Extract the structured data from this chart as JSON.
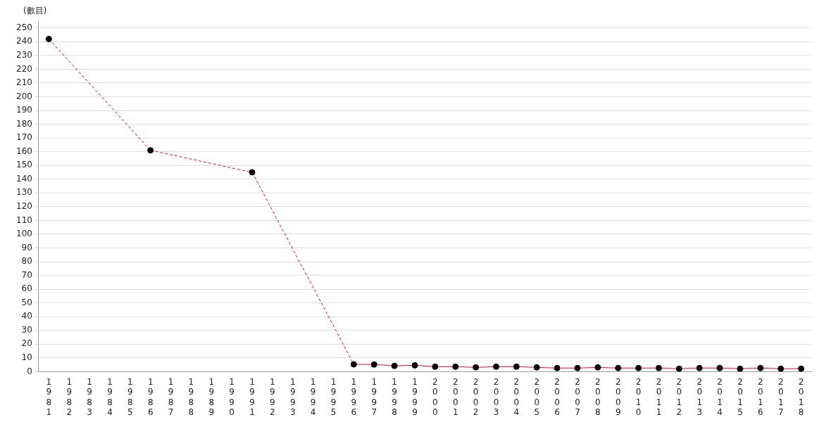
{
  "chart_data": {
    "type": "line",
    "ylabel": "(數目)",
    "categories": [
      "1981",
      "1982",
      "1983",
      "1984",
      "1985",
      "1986",
      "1987",
      "1988",
      "1989",
      "1990",
      "1991",
      "1992",
      "1993",
      "1994",
      "1995",
      "1996",
      "1997",
      "1998",
      "1999",
      "2000",
      "2001",
      "2002",
      "2003",
      "2004",
      "2005",
      "2006",
      "2007",
      "2008",
      "2009",
      "2010",
      "2011",
      "2012",
      "2013",
      "2014",
      "2015",
      "2016",
      "2017",
      "2018"
    ],
    "series": [
      {
        "color": "#ff0033",
        "values": [
          242,
          null,
          null,
          null,
          null,
          161,
          null,
          null,
          null,
          null,
          145,
          null,
          null,
          null,
          null,
          5.3,
          5.2,
          4.2,
          4.6,
          3.6,
          3.6,
          3.1,
          3.6,
          3.6,
          3.1,
          2.6,
          2.6,
          3.1,
          2.6,
          2.6,
          2.6,
          2.1,
          2.6,
          2.6,
          2.1,
          2.6,
          2.1,
          2.1
        ]
      }
    ],
    "ylim": [
      0,
      255
    ],
    "yticks": [
      0,
      10,
      20,
      30,
      40,
      50,
      60,
      70,
      80,
      90,
      100,
      110,
      120,
      130,
      140,
      150,
      160,
      170,
      180,
      190,
      200,
      210,
      220,
      230,
      240,
      250
    ],
    "grid": "y",
    "legend": false,
    "marker": "circle"
  }
}
